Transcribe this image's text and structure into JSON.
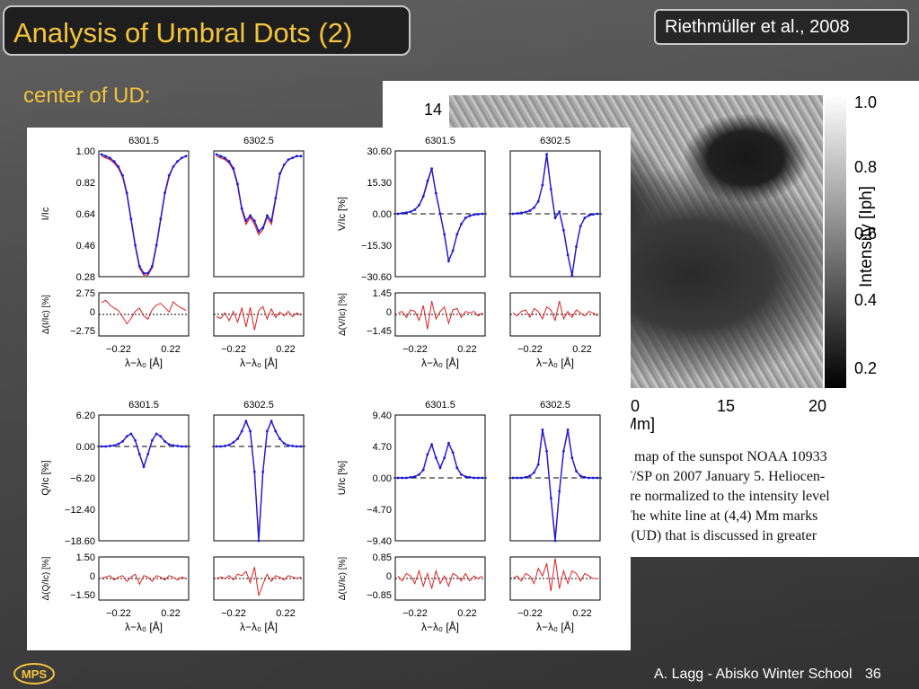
{
  "slide": {
    "title": "Analysis of Umbral Dots (2)",
    "citation": "Riethmüller et al., 2008",
    "subtitle": "center of UD:",
    "footer": "A. Lagg - Abisko Winter School",
    "page_number": "36",
    "logo_text": "MPS",
    "colors": {
      "title": "#f3c43c",
      "observed": "#e02020",
      "fit": "#1a1adc"
    }
  },
  "paper": {
    "map_y_tick": "14",
    "map_x_ticks": [
      "0",
      "15",
      "20"
    ],
    "map_axis_unit": "Mm]",
    "colorbar_ticks": [
      "1.0",
      "0.8",
      "0.6",
      "0.4",
      "0.2"
    ],
    "colorbar_label": "Intensity [Iph]",
    "caption_lines": [
      "y map of the sunspot NOAA 10933",
      "T/SP on 2007 January 5. Heliocen-",
      "are normalized to the intensity level",
      "The white line at (4,4) Mm marks",
      "t (UD) that is discussed in greater"
    ]
  },
  "chart_data": {
    "type": "line",
    "xlabel": "λ−λ₀ [Å]",
    "x_ticks": [
      "−0.22",
      "0.22"
    ],
    "line_labels": [
      "6301.5",
      "6302.5"
    ],
    "panels": [
      {
        "id": "I",
        "ylabel": "I/Ic",
        "y_ticks": [
          "1.00",
          "0.82",
          "0.64",
          "0.46",
          "0.28"
        ],
        "ylim": [
          0.28,
          1.0
        ],
        "residual_ylabel": "Δ(I/Ic) [%]",
        "residual_ticks": [
          "2.75",
          "0",
          "−2.75"
        ],
        "residual_ylim": [
          -2.75,
          2.75
        ],
        "series": [
          {
            "line": "6301.5",
            "observed": [
              0.97,
              0.96,
              0.95,
              0.93,
              0.9,
              0.85,
              0.75,
              0.6,
              0.45,
              0.33,
              0.29,
              0.29,
              0.33,
              0.45,
              0.6,
              0.75,
              0.85,
              0.91,
              0.94,
              0.96,
              0.97
            ],
            "fit": [
              0.98,
              0.97,
              0.96,
              0.94,
              0.91,
              0.86,
              0.76,
              0.61,
              0.46,
              0.34,
              0.3,
              0.3,
              0.34,
              0.46,
              0.61,
              0.76,
              0.86,
              0.91,
              0.94,
              0.96,
              0.97
            ],
            "residual": [
              1.5,
              1.8,
              1.2,
              0.8,
              0.5,
              -0.3,
              -1.2,
              -0.5,
              0.4,
              0.8,
              -0.2,
              -0.6,
              0.6,
              1.2,
              1.4,
              0.9,
              0.3,
              1.6,
              1.1,
              0.8,
              0.5
            ]
          },
          {
            "line": "6302.5",
            "observed": [
              0.97,
              0.96,
              0.95,
              0.93,
              0.89,
              0.8,
              0.66,
              0.58,
              0.62,
              0.58,
              0.52,
              0.55,
              0.62,
              0.58,
              0.72,
              0.86,
              0.92,
              0.95,
              0.96,
              0.97,
              0.97
            ],
            "fit": [
              0.98,
              0.97,
              0.96,
              0.94,
              0.9,
              0.81,
              0.67,
              0.6,
              0.63,
              0.6,
              0.54,
              0.56,
              0.63,
              0.6,
              0.73,
              0.87,
              0.92,
              0.95,
              0.96,
              0.97,
              0.97
            ],
            "residual": [
              -0.3,
              -0.5,
              0.2,
              -0.8,
              0.4,
              -1.0,
              0.8,
              -1.6,
              0.9,
              -2.0,
              0.5,
              1.0,
              -0.6,
              0.7,
              -0.4,
              0.3,
              -0.2,
              0.4,
              -0.3,
              0.2,
              -0.1
            ]
          }
        ]
      },
      {
        "id": "V",
        "ylabel": "V/Ic [%]",
        "y_ticks": [
          "30.60",
          "15.30",
          "0.00",
          "−15.30",
          "−30.60"
        ],
        "ylim": [
          -30.6,
          30.6
        ],
        "residual_ylabel": "Δ(V/Ic) [%]",
        "residual_ticks": [
          "1.45",
          "0",
          "−1.45"
        ],
        "residual_ylim": [
          -1.45,
          1.45
        ],
        "series": [
          {
            "line": "6301.5",
            "observed": [
              0,
              0.3,
              0.6,
              1.0,
              2.0,
              4.0,
              8.0,
              15,
              22,
              10,
              0,
              -10,
              -23,
              -18,
              -10,
              -5,
              -2,
              -1,
              -0.4,
              -0.2,
              0
            ],
            "fit": [
              0,
              0.3,
              0.6,
              1.0,
              2.0,
              4.2,
              8.5,
              16,
              22,
              10,
              0,
              -10,
              -23,
              -18,
              -10,
              -5,
              -2,
              -1,
              -0.4,
              -0.2,
              0
            ],
            "residual": [
              0.1,
              0.2,
              -0.2,
              0.3,
              0.2,
              -0.4,
              0.6,
              -1.0,
              0.9,
              -0.3,
              0.2,
              0.5,
              -0.6,
              0.3,
              0.4,
              -0.2,
              0.2,
              0.1,
              0.2,
              -0.1,
              0.1
            ]
          },
          {
            "line": "6302.5",
            "observed": [
              0,
              0.2,
              0.5,
              0.8,
              1.5,
              3.0,
              6.0,
              14,
              28,
              12,
              -2,
              1,
              -8,
              -20,
              -30,
              -16,
              -6,
              -2,
              -0.8,
              -0.3,
              0
            ],
            "fit": [
              0,
              0.2,
              0.5,
              0.8,
              1.5,
              3.0,
              6.0,
              14,
              29,
              12,
              -2,
              1,
              -8,
              -20,
              -30,
              -16,
              -6,
              -2,
              -0.8,
              -0.3,
              0
            ],
            "residual": [
              0.1,
              -0.1,
              0.2,
              0.3,
              -0.2,
              0.4,
              0.2,
              -0.3,
              0.5,
              0.3,
              -0.4,
              0.9,
              -0.3,
              0.2,
              -0.2,
              0.3,
              0.1,
              -0.1,
              0.2,
              0.1,
              -0.1
            ]
          }
        ]
      },
      {
        "id": "Q",
        "ylabel": "Q/Ic [%]",
        "y_ticks": [
          "6.20",
          "0.00",
          "−6.20",
          "−12.40",
          "−18.60"
        ],
        "ylim": [
          -18.6,
          6.2
        ],
        "residual_ylabel": "Δ(Q/Ic) [%]",
        "residual_ticks": [
          "1.50",
          "0",
          "−1.50"
        ],
        "residual_ylim": [
          -1.5,
          1.5
        ],
        "series": [
          {
            "line": "6301.5",
            "observed": [
              0,
              0,
              0.1,
              0.2,
              0.5,
              1.0,
              2.0,
              2.5,
              1.2,
              -1.5,
              -4.0,
              -1.5,
              1.2,
              2.5,
              2.0,
              1.0,
              0.4,
              0.2,
              0.1,
              0,
              0
            ],
            "fit": [
              0,
              0,
              0.1,
              0.2,
              0.5,
              1.0,
              2.0,
              2.5,
              1.2,
              -1.5,
              -4.0,
              -1.5,
              1.2,
              2.5,
              2.0,
              1.0,
              0.4,
              0.2,
              0.1,
              0,
              0
            ],
            "residual": [
              0,
              0.1,
              0.2,
              -0.1,
              0.1,
              0.2,
              -0.2,
              0.1,
              0.3,
              -0.4,
              0.2,
              0.1,
              -0.2,
              0.2,
              0.1,
              -0.1,
              0.2,
              0.1,
              -0.1,
              0.1,
              0
            ]
          },
          {
            "line": "6302.5",
            "observed": [
              0,
              0,
              0.1,
              0.3,
              0.8,
              1.5,
              3.0,
              5.0,
              3.0,
              -5.0,
              -18.0,
              -5.0,
              3.0,
              5.0,
              3.0,
              1.5,
              0.6,
              0.2,
              0.1,
              0,
              0
            ],
            "fit": [
              0,
              0,
              0.1,
              0.3,
              0.8,
              1.5,
              3.0,
              5.0,
              3.0,
              -5.0,
              -18.6,
              -5.0,
              3.0,
              5.0,
              3.0,
              1.5,
              0.6,
              0.2,
              0.1,
              0,
              0
            ],
            "residual": [
              0,
              0.1,
              0,
              0.2,
              -0.1,
              0.3,
              0.2,
              0.5,
              -0.3,
              0.8,
              -1.2,
              -0.4,
              0.3,
              -0.2,
              0.2,
              0.1,
              -0.1,
              0.2,
              0.1,
              0,
              0.1
            ]
          }
        ]
      },
      {
        "id": "U",
        "ylabel": "U/Ic [%]",
        "y_ticks": [
          "9.40",
          "4.70",
          "0.00",
          "−4.70",
          "−9.40"
        ],
        "ylim": [
          -9.4,
          9.4
        ],
        "residual_ylabel": "Δ(U/Ic) [%]",
        "residual_ticks": [
          "0.85",
          "0",
          "−0.85"
        ],
        "residual_ylim": [
          -0.85,
          0.85
        ],
        "series": [
          {
            "line": "6301.5",
            "observed": [
              0,
              0,
              0,
              0.1,
              0.2,
              0.5,
              1.2,
              3.5,
              5.0,
              3.0,
              1.5,
              3.0,
              5.2,
              3.8,
              1.5,
              0.5,
              0.2,
              0.1,
              0,
              0,
              0
            ],
            "fit": [
              0,
              0,
              0,
              0.1,
              0.2,
              0.5,
              1.2,
              3.5,
              5.0,
              3.0,
              1.5,
              3.0,
              5.2,
              3.8,
              1.5,
              0.5,
              0.2,
              0.1,
              0,
              0,
              0
            ],
            "residual": [
              0.1,
              -0.1,
              0.2,
              0.1,
              -0.2,
              0.3,
              -0.3,
              0.2,
              -0.4,
              0.3,
              -0.2,
              0.1,
              -0.3,
              0.2,
              0.1,
              -0.1,
              0.2,
              -0.1,
              0.1,
              0,
              0.1
            ]
          },
          {
            "line": "6302.5",
            "observed": [
              0,
              0,
              0,
              0.1,
              0.3,
              0.8,
              2.0,
              7.0,
              4.0,
              -3.0,
              -9.0,
              -2.0,
              4.0,
              7.0,
              3.0,
              1.0,
              0.3,
              0.1,
              0,
              0,
              0
            ],
            "fit": [
              0,
              0,
              0,
              0.1,
              0.3,
              0.8,
              2.0,
              7.2,
              4.0,
              -3.0,
              -9.4,
              -2.0,
              4.0,
              7.2,
              3.0,
              1.0,
              0.3,
              0.1,
              0,
              0,
              0
            ],
            "residual": [
              0,
              0.1,
              -0.1,
              0.2,
              0.1,
              -0.2,
              0.4,
              0.1,
              0.6,
              -0.5,
              0.8,
              -0.4,
              0.3,
              -0.2,
              0.3,
              0.2,
              -0.1,
              0.2,
              0.1,
              0,
              0
            ]
          }
        ]
      }
    ]
  }
}
